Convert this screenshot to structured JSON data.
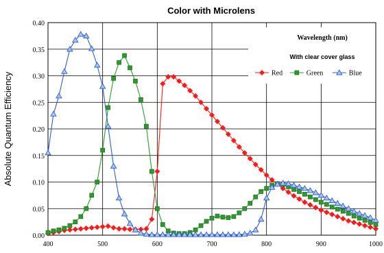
{
  "chart_data": {
    "type": "line",
    "title": "Color with Microlens",
    "xlabel": "",
    "ylabel": "Absolute Quantum Efficiency",
    "xlim": [
      400,
      1000
    ],
    "ylim": [
      0,
      0.4
    ],
    "xticks": [
      400,
      500,
      600,
      700,
      800,
      900,
      1000
    ],
    "yticks": [
      0.0,
      0.05,
      0.1,
      0.15,
      0.2,
      0.25,
      0.3,
      0.35,
      0.4
    ],
    "ytick_labels": [
      "0.00",
      "0.05",
      "0.10",
      "0.15",
      "0.20",
      "0.25",
      "0.30",
      "0.35",
      "0.40"
    ],
    "grid": true,
    "legend_position": "top-right",
    "annotations": [
      "Wavelength (nm)",
      "With clear cover glass"
    ],
    "colors": {
      "Red": "#ff1a1a",
      "Green": "#2e9a2e",
      "Blue": "#2f5fd0"
    },
    "series": [
      {
        "name": "Red",
        "marker": "diamond",
        "x": [
          400,
          410,
          420,
          430,
          440,
          450,
          460,
          470,
          480,
          490,
          500,
          510,
          520,
          530,
          540,
          550,
          560,
          570,
          580,
          590,
          600,
          610,
          620,
          630,
          640,
          650,
          660,
          670,
          680,
          690,
          700,
          710,
          720,
          730,
          740,
          750,
          760,
          770,
          780,
          790,
          800,
          810,
          820,
          830,
          840,
          850,
          860,
          870,
          880,
          890,
          900,
          910,
          920,
          930,
          940,
          950,
          960,
          970,
          980,
          990,
          1000
        ],
        "y": [
          0.003,
          0.005,
          0.007,
          0.009,
          0.01,
          0.011,
          0.012,
          0.013,
          0.014,
          0.015,
          0.016,
          0.017,
          0.014,
          0.012,
          0.012,
          0.011,
          0.011,
          0.011,
          0.012,
          0.03,
          0.12,
          0.285,
          0.298,
          0.298,
          0.29,
          0.282,
          0.272,
          0.262,
          0.25,
          0.238,
          0.226,
          0.214,
          0.202,
          0.19,
          0.178,
          0.166,
          0.155,
          0.144,
          0.133,
          0.123,
          0.113,
          0.104,
          0.096,
          0.088,
          0.081,
          0.074,
          0.068,
          0.062,
          0.057,
          0.052,
          0.047,
          0.043,
          0.039,
          0.035,
          0.031,
          0.027,
          0.024,
          0.021,
          0.018,
          0.015,
          0.012
        ]
      },
      {
        "name": "Green",
        "marker": "square",
        "x": [
          400,
          410,
          420,
          430,
          440,
          450,
          460,
          470,
          480,
          490,
          500,
          510,
          520,
          530,
          540,
          550,
          560,
          570,
          580,
          590,
          600,
          610,
          620,
          630,
          640,
          650,
          660,
          670,
          680,
          690,
          700,
          710,
          720,
          730,
          740,
          750,
          760,
          770,
          780,
          790,
          800,
          810,
          820,
          830,
          840,
          850,
          860,
          870,
          880,
          890,
          900,
          910,
          920,
          930,
          940,
          950,
          960,
          970,
          980,
          990,
          1000
        ],
        "y": [
          0.005,
          0.008,
          0.01,
          0.013,
          0.018,
          0.025,
          0.035,
          0.05,
          0.075,
          0.1,
          0.16,
          0.24,
          0.295,
          0.325,
          0.338,
          0.315,
          0.29,
          0.255,
          0.205,
          0.12,
          0.05,
          0.02,
          0.008,
          0.004,
          0.003,
          0.003,
          0.005,
          0.01,
          0.018,
          0.026,
          0.032,
          0.036,
          0.034,
          0.033,
          0.035,
          0.042,
          0.05,
          0.06,
          0.072,
          0.082,
          0.088,
          0.094,
          0.097,
          0.095,
          0.091,
          0.086,
          0.082,
          0.077,
          0.072,
          0.067,
          0.062,
          0.058,
          0.053,
          0.049,
          0.045,
          0.041,
          0.036,
          0.032,
          0.028,
          0.024,
          0.02
        ]
      },
      {
        "name": "Blue",
        "marker": "triangle",
        "x": [
          400,
          410,
          420,
          430,
          440,
          450,
          460,
          470,
          480,
          490,
          500,
          510,
          520,
          530,
          540,
          550,
          560,
          570,
          580,
          590,
          600,
          610,
          620,
          630,
          640,
          650,
          660,
          670,
          680,
          690,
          700,
          710,
          720,
          730,
          740,
          750,
          760,
          770,
          780,
          790,
          800,
          810,
          820,
          830,
          840,
          850,
          860,
          870,
          880,
          890,
          900,
          910,
          920,
          930,
          940,
          950,
          960,
          970,
          980,
          990,
          1000
        ],
        "y": [
          0.155,
          0.228,
          0.262,
          0.308,
          0.35,
          0.367,
          0.378,
          0.375,
          0.351,
          0.32,
          0.28,
          0.205,
          0.13,
          0.07,
          0.04,
          0.022,
          0.01,
          0.004,
          0.002,
          0.001,
          0.001,
          0.001,
          0.001,
          0.001,
          0.001,
          0.001,
          0.001,
          0.001,
          0.001,
          0.001,
          0.001,
          0.001,
          0.001,
          0.001,
          0.001,
          0.001,
          0.002,
          0.004,
          0.01,
          0.03,
          0.07,
          0.09,
          0.096,
          0.098,
          0.097,
          0.094,
          0.091,
          0.088,
          0.084,
          0.08,
          0.075,
          0.07,
          0.065,
          0.06,
          0.055,
          0.05,
          0.045,
          0.041,
          0.037,
          0.033,
          0.028
        ]
      }
    ]
  }
}
